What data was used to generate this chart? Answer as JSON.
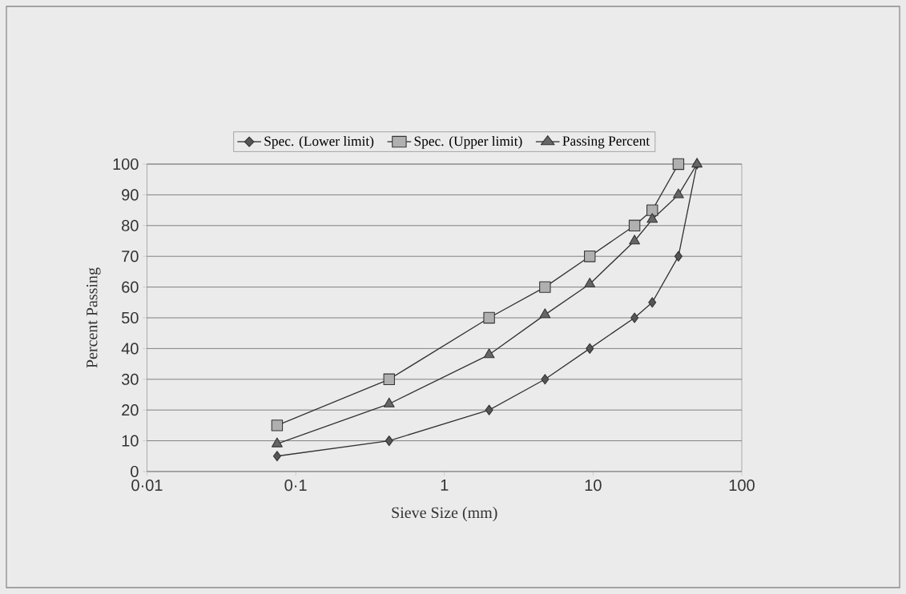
{
  "chart_data": {
    "type": "line",
    "xlabel": "Sieve Size (mm)",
    "ylabel": "Percent Passing",
    "log": "x",
    "xlim": [
      0.01,
      100
    ],
    "xticks": [
      {
        "value": 0.01,
        "label": "0·01"
      },
      {
        "value": 0.1,
        "label": "0·1"
      },
      1,
      10,
      100
    ],
    "ylim": [
      0,
      100
    ],
    "yticks": [
      0,
      10,
      20,
      30,
      40,
      50,
      60,
      70,
      80,
      90,
      100
    ],
    "grid": "y",
    "legend": "top",
    "series": [
      {
        "name": "Spec. (Lower limit)",
        "color": "#555555",
        "marker": "diamond",
        "x": [
          0.075,
          0.425,
          2,
          4.75,
          9.5,
          19,
          25,
          37.5,
          50
        ],
        "values": [
          5,
          10,
          20,
          30,
          40,
          50,
          55,
          70,
          100
        ]
      },
      {
        "name": "Spec. (Upper limit)",
        "color": "#b0b0b0",
        "marker": "square",
        "x": [
          0.075,
          0.425,
          2,
          4.75,
          9.5,
          19,
          25,
          37.5
        ],
        "values": [
          15,
          30,
          50,
          60,
          70,
          80,
          85,
          100
        ]
      },
      {
        "name": "Passing Percent",
        "color": "#666666",
        "marker": "triangle",
        "x": [
          0.075,
          0.425,
          2,
          4.75,
          9.5,
          19,
          25,
          37.5,
          50
        ],
        "values": [
          9,
          22,
          38,
          51,
          61,
          75,
          82,
          90,
          100
        ]
      }
    ]
  }
}
